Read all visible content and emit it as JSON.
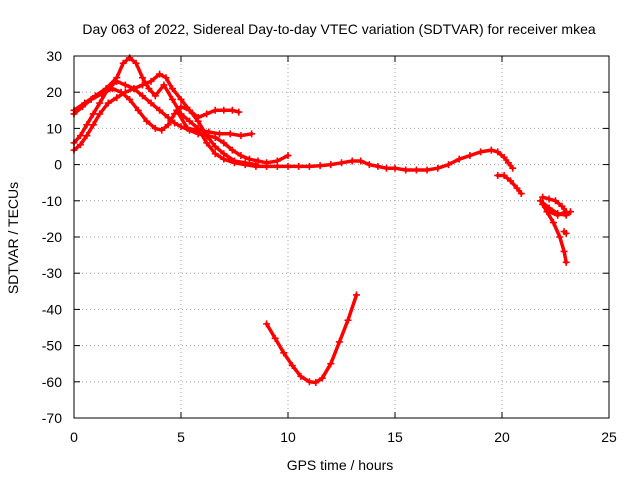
{
  "chart_data": {
    "type": "scatter",
    "title": "Day 063 of 2022, Sidereal Day-to-day VTEC variation (SDTVAR) for receiver mkea",
    "xlabel": "GPS time / hours",
    "ylabel": "SDTVAR / TECUs",
    "xlim": [
      0,
      25
    ],
    "ylim": [
      -70,
      30
    ],
    "xticks": [
      0,
      5,
      10,
      15,
      20,
      25
    ],
    "yticks": [
      -70,
      -60,
      -50,
      -40,
      -30,
      -20,
      -10,
      0,
      10,
      20,
      30
    ],
    "grid": true,
    "marker": "+",
    "series_color": "#ff0000",
    "series": [
      {
        "name": "arc-1",
        "points": [
          [
            0,
            15
          ],
          [
            0.5,
            17
          ],
          [
            1.0,
            19
          ],
          [
            1.5,
            21
          ],
          [
            2.0,
            24
          ],
          [
            2.3,
            28
          ],
          [
            2.6,
            29.5
          ],
          [
            2.9,
            28
          ],
          [
            3.2,
            24
          ],
          [
            3.5,
            21
          ],
          [
            3.8,
            19
          ],
          [
            4.2,
            22
          ],
          [
            4.6,
            18
          ],
          [
            5.0,
            14
          ],
          [
            5.4,
            12
          ],
          [
            5.8,
            10
          ],
          [
            6.2,
            6
          ],
          [
            6.6,
            3
          ],
          [
            7.0,
            1.5
          ],
          [
            7.5,
            0.5
          ],
          [
            8.0,
            0
          ],
          [
            8.5,
            -0.5
          ],
          [
            9.0,
            -0.5
          ],
          [
            9.5,
            -0.5
          ],
          [
            10.0,
            -0.5
          ],
          [
            10.5,
            -0.5
          ],
          [
            11.0,
            -0.5
          ],
          [
            11.5,
            -0.3
          ],
          [
            12.0,
            0
          ],
          [
            12.5,
            0.5
          ],
          [
            13.0,
            1
          ],
          [
            13.4,
            1
          ],
          [
            13.8,
            0
          ],
          [
            14.2,
            -0.5
          ],
          [
            14.6,
            -1
          ],
          [
            15.0,
            -1
          ],
          [
            15.5,
            -1.5
          ],
          [
            16.0,
            -1.5
          ],
          [
            16.5,
            -1.5
          ],
          [
            17.0,
            -1
          ],
          [
            17.5,
            0
          ],
          [
            18.0,
            1.5
          ],
          [
            18.5,
            2.5
          ],
          [
            19.0,
            3.5
          ],
          [
            19.5,
            4
          ],
          [
            19.8,
            3.5
          ],
          [
            20.1,
            2
          ],
          [
            20.3,
            0.5
          ],
          [
            20.5,
            -1
          ]
        ]
      },
      {
        "name": "arc-2",
        "points": [
          [
            0,
            14
          ],
          [
            0.4,
            16
          ],
          [
            0.8,
            18
          ],
          [
            1.3,
            19.5
          ],
          [
            1.8,
            21
          ],
          [
            2.2,
            20
          ],
          [
            2.6,
            18
          ],
          [
            3.0,
            15
          ],
          [
            3.4,
            12
          ],
          [
            3.8,
            10
          ],
          [
            4.1,
            9.5
          ],
          [
            4.4,
            11
          ],
          [
            4.7,
            14
          ],
          [
            5.0,
            16
          ],
          [
            5.4,
            15
          ],
          [
            5.8,
            12
          ],
          [
            6.2,
            8
          ],
          [
            6.6,
            5
          ],
          [
            7.0,
            3
          ],
          [
            7.5,
            1
          ],
          [
            8.0,
            0.5
          ],
          [
            8.5,
            0
          ]
        ]
      },
      {
        "name": "arc-3",
        "points": [
          [
            0,
            6
          ],
          [
            0.3,
            8
          ],
          [
            0.6,
            11
          ],
          [
            0.9,
            14
          ],
          [
            1.2,
            17
          ],
          [
            1.6,
            21
          ],
          [
            2.0,
            23
          ],
          [
            2.4,
            22
          ],
          [
            2.8,
            21
          ],
          [
            3.2,
            19
          ],
          [
            3.6,
            17
          ],
          [
            4.0,
            15
          ],
          [
            4.4,
            13
          ],
          [
            4.7,
            11.5
          ],
          [
            5.0,
            10.5
          ],
          [
            5.4,
            9.5
          ],
          [
            5.8,
            8.5
          ],
          [
            6.2,
            8
          ],
          [
            6.6,
            7.5
          ],
          [
            7.0,
            6
          ],
          [
            7.4,
            4
          ],
          [
            7.8,
            2.5
          ],
          [
            8.2,
            1.5
          ],
          [
            8.6,
            1
          ],
          [
            9.0,
            0.5
          ],
          [
            9.5,
            1
          ],
          [
            10.0,
            2.5
          ]
        ]
      },
      {
        "name": "arc-4",
        "points": [
          [
            0,
            4
          ],
          [
            0.3,
            5.5
          ],
          [
            0.6,
            8
          ],
          [
            0.9,
            11
          ],
          [
            1.2,
            14
          ],
          [
            1.6,
            17
          ],
          [
            2.0,
            18.5
          ],
          [
            2.4,
            20
          ],
          [
            2.8,
            21
          ],
          [
            3.2,
            22
          ],
          [
            3.6,
            23
          ],
          [
            4.0,
            25
          ],
          [
            4.3,
            24
          ],
          [
            4.6,
            21
          ],
          [
            5.0,
            18
          ],
          [
            5.4,
            15
          ],
          [
            5.8,
            13
          ],
          [
            6.2,
            14
          ],
          [
            6.6,
            15
          ],
          [
            7.0,
            15
          ],
          [
            7.4,
            15
          ],
          [
            7.7,
            14.5
          ]
        ]
      },
      {
        "name": "arc-5",
        "points": [
          [
            4.8,
            15
          ],
          [
            5.3,
            10
          ],
          [
            5.8,
            9.5
          ],
          [
            6.3,
            9
          ],
          [
            6.8,
            8.5
          ],
          [
            7.3,
            8.5
          ],
          [
            7.8,
            8
          ],
          [
            8.3,
            8.5
          ]
        ]
      },
      {
        "name": "arc-6",
        "points": [
          [
            9.0,
            -44
          ],
          [
            9.4,
            -48
          ],
          [
            9.8,
            -52
          ],
          [
            10.2,
            -55.5
          ],
          [
            10.6,
            -58.5
          ],
          [
            11.0,
            -60
          ],
          [
            11.3,
            -60.2
          ],
          [
            11.6,
            -59
          ],
          [
            12.0,
            -55
          ],
          [
            12.4,
            -49
          ],
          [
            12.8,
            -43
          ],
          [
            13.2,
            -36
          ]
        ]
      },
      {
        "name": "arc-7",
        "points": [
          [
            19.8,
            -3
          ],
          [
            20.1,
            -3
          ],
          [
            20.4,
            -4.5
          ],
          [
            20.7,
            -6.5
          ],
          [
            20.9,
            -8
          ]
        ]
      },
      {
        "name": "arc-8",
        "points": [
          [
            21.9,
            -9
          ],
          [
            22.2,
            -9.5
          ],
          [
            22.5,
            -10
          ],
          [
            22.8,
            -11.5
          ],
          [
            23.0,
            -13
          ],
          [
            22.6,
            -14
          ],
          [
            22.2,
            -13
          ],
          [
            21.9,
            -11
          ],
          [
            22.1,
            -13
          ],
          [
            22.4,
            -16
          ],
          [
            22.7,
            -20
          ],
          [
            22.9,
            -24
          ],
          [
            23.0,
            -27
          ]
        ]
      },
      {
        "name": "arc-9",
        "points": [
          [
            21.8,
            -10
          ],
          [
            22.2,
            -12
          ],
          [
            22.6,
            -13.5
          ],
          [
            23.0,
            -14
          ],
          [
            23.2,
            -13
          ]
        ]
      },
      {
        "name": "arc-10",
        "points": [
          [
            22.9,
            -18.5
          ],
          [
            23.0,
            -19
          ]
        ]
      }
    ]
  }
}
